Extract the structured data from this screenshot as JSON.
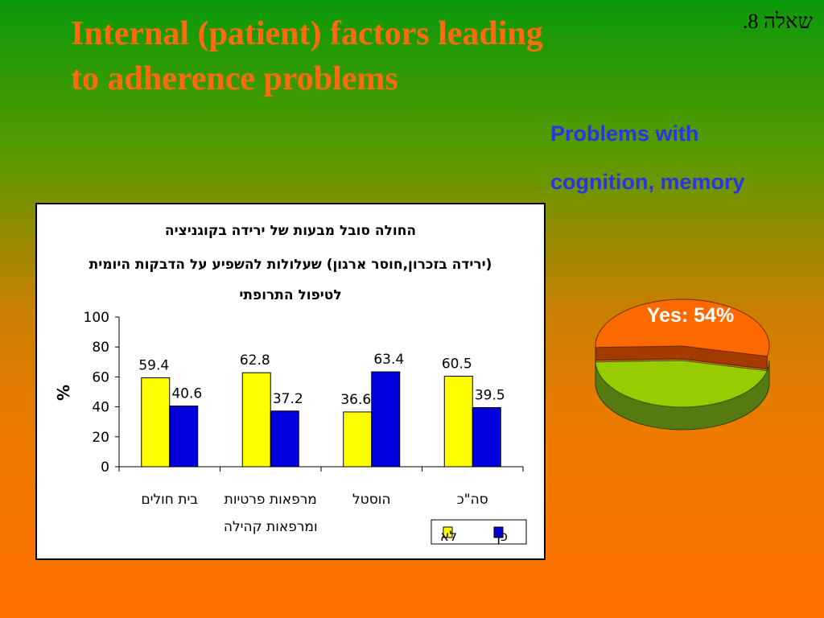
{
  "slide": {
    "title_line1": "Internal (patient) factors leading",
    "title_line2": "to adherence problems",
    "question_number": "שאלה 8.",
    "subtitle_line1": "Problems with",
    "subtitle_line2": "cognition, memory"
  },
  "colors": {
    "title": "#ff6a10",
    "subtitle": "#2a34e6",
    "series_no": "#ffff00",
    "series_yes": "#0000dd",
    "pie_yes": "#ff6a00",
    "pie_no": "#99cc00"
  },
  "chart_data": [
    {
      "type": "bar",
      "title_lines": [
        "החולה סובל מבעות של ירידה בקוגניציה",
        "(ירידה בזכרון,חוסר ארגון) שעלולות להשפיע על הדבקות היומית",
        "לטיפול התרופתי"
      ],
      "ylabel": "%",
      "ylim": [
        0,
        100
      ],
      "yticks": [
        "0",
        "20",
        "40",
        "60",
        "80",
        "100"
      ],
      "categories": [
        [
          "בית חולים"
        ],
        [
          "מרפאות פרטיות",
          "ומרפאות קהילה"
        ],
        [
          "הוסטל"
        ],
        [
          "סה\"כ"
        ]
      ],
      "series": [
        {
          "name": "לא",
          "values": [
            59.4,
            62.8,
            36.6,
            60.5
          ]
        },
        {
          "name": "כן",
          "values": [
            40.6,
            37.2,
            63.4,
            39.5
          ]
        }
      ],
      "data_labels": [
        [
          "59.4",
          "62.8",
          "36.6",
          "60.5"
        ],
        [
          "40.6",
          "37.2",
          "63.4",
          "39.5"
        ]
      ],
      "legend_position": "bottom-right",
      "grid": false
    },
    {
      "type": "pie",
      "slices": [
        {
          "label": "Yes: 54%",
          "value": 54
        },
        {
          "value": 46
        }
      ]
    }
  ]
}
